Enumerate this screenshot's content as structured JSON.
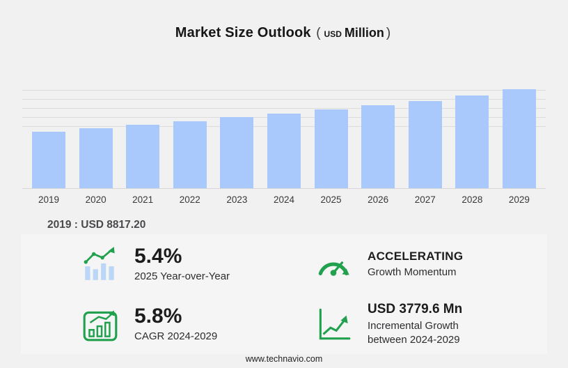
{
  "title": {
    "main": "Market Size Outlook",
    "open_paren": "(",
    "currency": "USD",
    "unit": "Million",
    "close_paren": ")"
  },
  "chart_data": {
    "type": "bar",
    "title": "Market Size Outlook (USD Million)",
    "categories": [
      "2019",
      "2020",
      "2021",
      "2022",
      "2023",
      "2024",
      "2025",
      "2026",
      "2027",
      "2028",
      "2029"
    ],
    "values": [
      8817.2,
      9350,
      9880,
      10420,
      11000,
      11600,
      12230,
      12890,
      13590,
      14380,
      15380
    ],
    "unit": "USD Million",
    "ylim": [
      0,
      15500
    ],
    "grid": "horizontal-lines-top",
    "legend": "none",
    "first_year_note": "2019 : USD 8817.20"
  },
  "note": {
    "text": "2019 : USD 8817.20"
  },
  "stats": [
    {
      "id": "yoy",
      "icon": "yoy-bars-icon",
      "value": "5.4%",
      "value_style": "big",
      "label": "2025 Year-over-Year"
    },
    {
      "id": "momentum",
      "icon": "speedometer-icon",
      "value": "ACCELERATING",
      "value_style": "caps",
      "label": "Growth Momentum"
    },
    {
      "id": "cagr",
      "icon": "cagr-chart-icon",
      "value": "5.8%",
      "value_style": "big",
      "label": "CAGR 2024-2029"
    },
    {
      "id": "incremental",
      "icon": "incremental-growth-icon",
      "value": "USD 3779.6 Mn",
      "value_style": "mid",
      "label": "Incremental Growth between 2024-2029"
    }
  ],
  "footer": {
    "url": "www.technavio.com"
  },
  "colors": {
    "bar": "#a9c8fb",
    "green": "#21a14e",
    "icon_bar_blue": "#bcd6f7",
    "background": "#f1f1f2",
    "panel": "#f5f5f6"
  }
}
